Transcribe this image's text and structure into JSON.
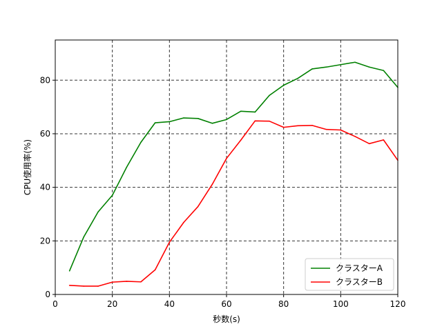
{
  "chart_data": {
    "type": "line",
    "title": "",
    "xlabel": "秒数(s)",
    "ylabel": "CPU使用率(%)",
    "xlim": [
      0,
      120
    ],
    "ylim": [
      0,
      95
    ],
    "xticks": [
      0,
      20,
      40,
      60,
      80,
      100,
      120
    ],
    "yticks": [
      0,
      20,
      40,
      60,
      80
    ],
    "grid": true,
    "grid_style": "dashed",
    "legend_position": "lower-right",
    "x": [
      5,
      10,
      15,
      20,
      25,
      30,
      35,
      40,
      45,
      50,
      55,
      60,
      65,
      70,
      75,
      80,
      85,
      90,
      95,
      100,
      105,
      110,
      115,
      120
    ],
    "series": [
      {
        "name": "クラスターA",
        "color": "#008000",
        "values": [
          8.8,
          21.5,
          30.8,
          37.0,
          47.5,
          56.8,
          64.1,
          64.5,
          65.9,
          65.7,
          63.9,
          65.3,
          68.4,
          68.1,
          74.3,
          78.1,
          80.7,
          84.2,
          84.9,
          85.8,
          86.7,
          84.9,
          83.6,
          77.3
        ]
      },
      {
        "name": "クラスターB",
        "color": "#ff0000",
        "values": [
          3.4,
          3.1,
          3.1,
          4.6,
          4.9,
          4.7,
          9.2,
          19.5,
          26.9,
          32.8,
          41.1,
          50.8,
          57.6,
          64.8,
          64.7,
          62.4,
          63.0,
          63.1,
          61.6,
          61.4,
          59.0,
          56.3,
          57.7,
          50.1
        ]
      }
    ]
  }
}
